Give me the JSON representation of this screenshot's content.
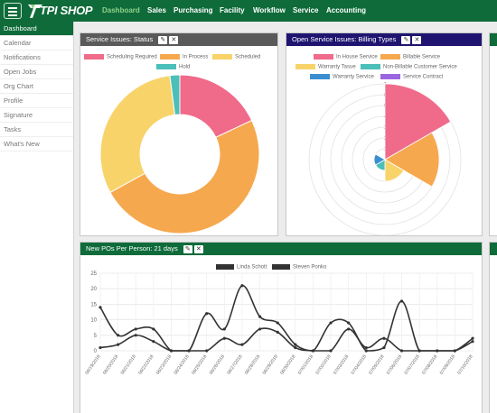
{
  "header": {
    "logo_text": "TPI SHOP",
    "nav": [
      "Dashboard",
      "Sales",
      "Purchasing",
      "Facility",
      "Workflow",
      "Service",
      "Accounting"
    ]
  },
  "sidebar": {
    "items": [
      "Dashboard",
      "Calendar",
      "Notifications",
      "Open Jobs",
      "Org Chart",
      "Profile",
      "Signature",
      "Tasks",
      "What's New"
    ]
  },
  "panels": {
    "service_status": {
      "title": "Service Issues: Status",
      "color": "#5a5a5a",
      "legend": [
        {
          "label": "Scheduling Required",
          "color": "#f06a8a"
        },
        {
          "label": "In Process",
          "color": "#f6a84e"
        },
        {
          "label": "Scheduled",
          "color": "#f8d36a"
        },
        {
          "label": "Hold",
          "color": "#4bbfb8"
        }
      ]
    },
    "billing_types": {
      "title": "Open Service Issues: Billing Types",
      "color": "#1f1570",
      "legend": [
        {
          "label": "In House Service",
          "color": "#f06a8a"
        },
        {
          "label": "Billable Service",
          "color": "#f6a84e"
        },
        {
          "label": "Warranty Tasue",
          "color": "#f8d36a"
        },
        {
          "label": "Non-Billable Customer Service",
          "color": "#4bbfb8"
        },
        {
          "label": "Warranty Service",
          "color": "#3b8fd1"
        },
        {
          "label": "Service Contract",
          "color": "#9a66e0"
        }
      ]
    },
    "new_pos": {
      "title": "New POs Per Person: 21 days",
      "color": "#0f6b3a"
    }
  },
  "chart_data": [
    {
      "type": "pie",
      "title": "Service Issues: Status",
      "categories": [
        "Scheduling Required",
        "In Process",
        "Scheduled",
        "Hold"
      ],
      "values": [
        18,
        49,
        31,
        2
      ]
    },
    {
      "type": "pie",
      "title": "Open Service Issues: Billing Types",
      "categories": [
        "In House Service",
        "Billable Service",
        "Warranty Tasue",
        "Non-Billable Customer Service",
        "Warranty Service",
        "Service Contract"
      ],
      "values": [
        7,
        5,
        2,
        1,
        1,
        0
      ],
      "scale_ticks": [
        1,
        2,
        3,
        4,
        5,
        6,
        7
      ],
      "ylim": [
        0,
        7
      ]
    },
    {
      "type": "line",
      "title": "New POs Per Person: 21 days",
      "x": [
        "06/19/2018",
        "06/20/2018",
        "06/21/2018",
        "06/22/2018",
        "06/23/2018",
        "06/24/2018",
        "06/25/2018",
        "06/26/2018",
        "06/27/2018",
        "06/28/2018",
        "06/29/2018",
        "06/30/2018",
        "07/01/2018",
        "07/02/2018",
        "07/03/2018",
        "07/04/2018",
        "07/05/2018",
        "07/06/2018",
        "07/07/2018",
        "07/08/2018",
        "07/09/2018",
        "07/10/2018"
      ],
      "series": [
        {
          "name": "Linda Schott",
          "values": [
            1,
            2,
            5,
            3,
            0,
            0,
            0,
            4,
            2,
            7,
            6,
            1,
            0,
            0,
            7,
            1,
            4,
            0,
            0,
            0,
            0,
            3
          ]
        },
        {
          "name": "Steven Ponko",
          "values": [
            14,
            5,
            7,
            7,
            0,
            0,
            12,
            7,
            21,
            11,
            9,
            2,
            0,
            9,
            9,
            0,
            1,
            16,
            0,
            0,
            0,
            4
          ]
        }
      ],
      "yticks": [
        0,
        5,
        10,
        15,
        20,
        25
      ],
      "ylim": [
        0,
        25
      ],
      "grid": true,
      "legend": "top"
    }
  ]
}
